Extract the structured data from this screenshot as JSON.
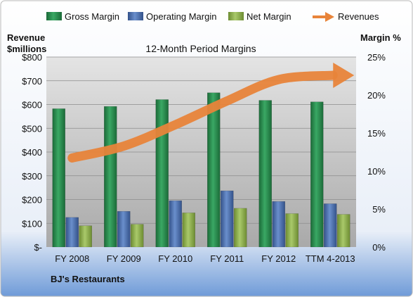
{
  "chart_data": {
    "type": "bar",
    "title": "12-Month Period Margins",
    "left_axis_label_line1": "Revenue",
    "left_axis_label_line2": "$millions",
    "right_axis_label": "Margin %",
    "company": "BJ's Restaurants",
    "categories": [
      "FY 2008",
      "FY 2009",
      "FY 2010",
      "FY 2011",
      "FY 2012",
      "TTM 4-2013"
    ],
    "left_axis": {
      "min": 0,
      "max": 800,
      "ticks": [
        "$-",
        "$100",
        "$200",
        "$300",
        "$400",
        "$500",
        "$600",
        "$700",
        "$800"
      ]
    },
    "right_axis": {
      "min": 0,
      "max": 25,
      "ticks": [
        "0%",
        "5%",
        "10%",
        "15%",
        "20%",
        "25%"
      ]
    },
    "series": [
      {
        "name": "Gross Margin",
        "axis": "right",
        "color": "#2e8b4e",
        "values": [
          18.2,
          18.5,
          19.4,
          20.3,
          19.3,
          19.1
        ]
      },
      {
        "name": "Operating Margin",
        "axis": "right",
        "color": "#4a6fae",
        "values": [
          3.9,
          4.7,
          6.1,
          7.4,
          6.0,
          5.7
        ]
      },
      {
        "name": "Net Margin",
        "axis": "right",
        "color": "#8bb04a",
        "values": [
          2.8,
          3.0,
          4.5,
          5.1,
          4.4,
          4.3
        ]
      },
      {
        "name": "Revenues",
        "axis": "left",
        "type": "arrow",
        "color": "#e8843a",
        "values": [
          375,
          425,
          515,
          615,
          705,
          720
        ]
      }
    ],
    "legend_position": "top",
    "grid": true
  }
}
